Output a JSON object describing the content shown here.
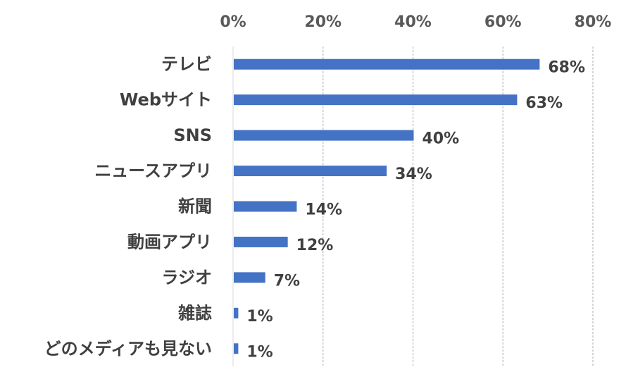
{
  "chart_data": {
    "type": "bar",
    "orientation": "horizontal",
    "categories": [
      "テレビ",
      "Webサイト",
      "SNS",
      "ニュースアプリ",
      "新聞",
      "動画アプリ",
      "ラジオ",
      "雑誌",
      "どのメディアも見ない"
    ],
    "values": [
      68,
      63,
      40,
      34,
      14,
      12,
      7,
      1,
      1
    ],
    "data_labels": [
      "68%",
      "63%",
      "40%",
      "34%",
      "14%",
      "12%",
      "7%",
      "1%",
      "1%"
    ],
    "xlim": [
      0,
      80
    ],
    "xticks": [
      0,
      20,
      40,
      60,
      80
    ],
    "xtick_labels": [
      "0%",
      "20%",
      "40%",
      "60%",
      "80%"
    ],
    "x_axis_position": "top",
    "grid": true,
    "legend": "none",
    "colors": {
      "bar": "#4472C4",
      "grid": "#bfbfbf",
      "tick_text": "#595959",
      "label_text": "#404040"
    }
  }
}
